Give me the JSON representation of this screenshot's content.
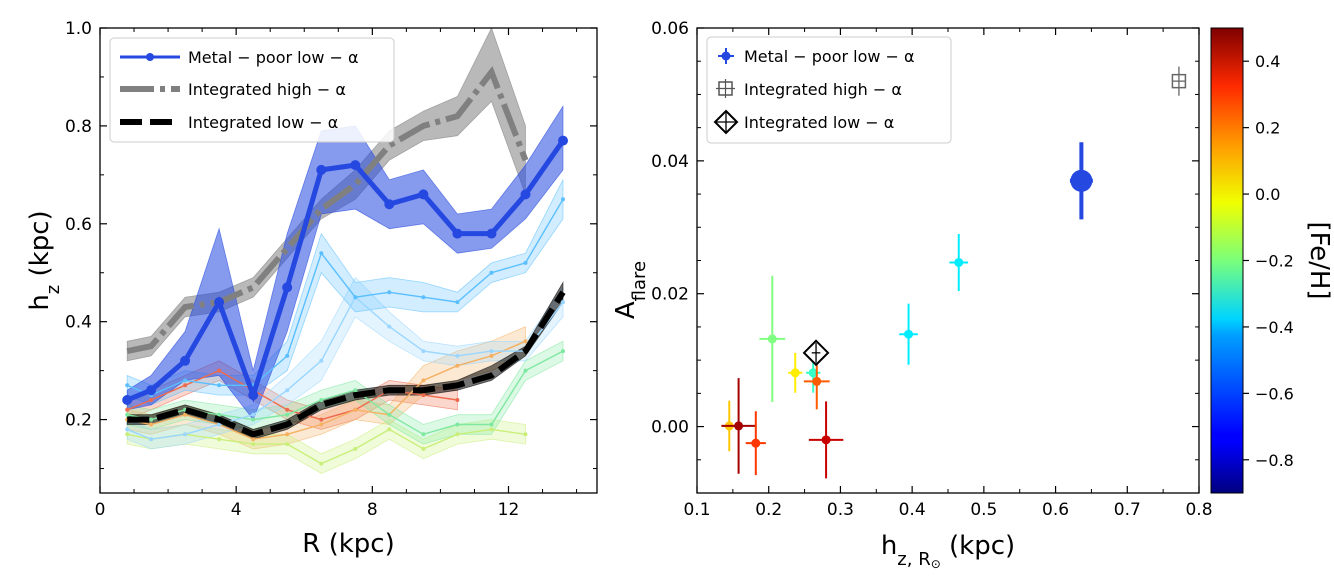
{
  "chart_data": [
    {
      "type": "line",
      "xlabel": "R (kpc)",
      "ylabel_main": "h",
      "ylabel_sub": "z",
      "ylabel_unit": " (kpc)",
      "xlim": [
        0,
        14.6
      ],
      "ylim": [
        0.05,
        1.0
      ],
      "xticks": [
        0,
        4,
        8,
        12
      ],
      "yticks": [
        0.2,
        0.4,
        0.6,
        0.8,
        1.0
      ],
      "ytick_labels": [
        "0.2",
        "0.4",
        "0.6",
        "0.8",
        "1.0"
      ],
      "legend": {
        "placement": "top-left",
        "entries": [
          "Metal − poor low − α",
          "Integrated high − α",
          "Integrated low − α"
        ]
      },
      "series": [
        {
          "color": "#2548e0",
          "style": "solid-marker",
          "highlight": true,
          "x": [
            0.8,
            1.5,
            2.5,
            3.5,
            4.5,
            5.5,
            6.5,
            7.5,
            8.5,
            9.5,
            10.5,
            11.5,
            12.5,
            13.6
          ],
          "y": [
            0.24,
            0.26,
            0.32,
            0.44,
            0.25,
            0.47,
            0.71,
            0.72,
            0.64,
            0.66,
            0.58,
            0.58,
            0.66,
            0.77
          ],
          "lo": [
            0.22,
            0.23,
            0.28,
            0.29,
            0.2,
            0.38,
            0.62,
            0.63,
            0.59,
            0.6,
            0.54,
            0.55,
            0.61,
            0.71
          ],
          "hi": [
            0.26,
            0.29,
            0.38,
            0.59,
            0.3,
            0.58,
            0.79,
            0.8,
            0.69,
            0.71,
            0.62,
            0.63,
            0.72,
            0.84
          ]
        },
        {
          "color": "#808080",
          "style": "dashdot",
          "x": [
            0.8,
            1.5,
            2.5,
            3.5,
            4.5,
            5.5,
            6.5,
            7.5,
            8.5,
            9.5,
            10.5,
            11.5,
            12.5
          ],
          "y": [
            0.34,
            0.35,
            0.43,
            0.44,
            0.47,
            0.55,
            0.63,
            0.68,
            0.76,
            0.8,
            0.82,
            0.91,
            0.73
          ],
          "lo": [
            0.32,
            0.33,
            0.41,
            0.42,
            0.45,
            0.53,
            0.61,
            0.65,
            0.73,
            0.77,
            0.78,
            0.85,
            0.66
          ],
          "hi": [
            0.36,
            0.37,
            0.45,
            0.46,
            0.49,
            0.57,
            0.65,
            0.71,
            0.79,
            0.83,
            0.86,
            1.0,
            0.8
          ]
        },
        {
          "color": "#000000",
          "style": "dashed",
          "x": [
            0.8,
            1.5,
            2.5,
            3.5,
            4.5,
            5.5,
            6.5,
            7.5,
            8.5,
            9.5,
            10.5,
            11.5,
            12.5,
            13.6
          ],
          "y": [
            0.2,
            0.2,
            0.22,
            0.2,
            0.17,
            0.19,
            0.23,
            0.25,
            0.26,
            0.26,
            0.27,
            0.29,
            0.34,
            0.46
          ],
          "lo": [
            0.19,
            0.19,
            0.21,
            0.19,
            0.16,
            0.18,
            0.22,
            0.24,
            0.25,
            0.25,
            0.26,
            0.28,
            0.33,
            0.44
          ],
          "hi": [
            0.21,
            0.21,
            0.23,
            0.21,
            0.18,
            0.2,
            0.24,
            0.26,
            0.27,
            0.27,
            0.28,
            0.31,
            0.35,
            0.48
          ]
        },
        {
          "color": "#5bbfff",
          "style": "thin",
          "x": [
            0.8,
            1.5,
            2.5,
            3.5,
            4.5,
            5.5,
            6.5,
            7.5,
            8.5,
            9.5,
            10.5,
            11.5,
            12.5,
            13.6
          ],
          "y": [
            0.27,
            0.25,
            0.28,
            0.27,
            0.27,
            0.33,
            0.54,
            0.45,
            0.46,
            0.45,
            0.44,
            0.5,
            0.52,
            0.65
          ],
          "lo": [
            0.25,
            0.23,
            0.26,
            0.25,
            0.25,
            0.3,
            0.5,
            0.42,
            0.43,
            0.42,
            0.42,
            0.48,
            0.5,
            0.61
          ],
          "hi": [
            0.29,
            0.27,
            0.3,
            0.29,
            0.29,
            0.36,
            0.58,
            0.48,
            0.49,
            0.48,
            0.46,
            0.52,
            0.54,
            0.69
          ]
        },
        {
          "color": "#9ad6ff",
          "style": "thin",
          "x": [
            0.8,
            1.5,
            2.5,
            3.5,
            4.5,
            5.5,
            6.5,
            7.5,
            8.5,
            9.5,
            10.5,
            11.5,
            12.5,
            13.6
          ],
          "y": [
            0.18,
            0.16,
            0.17,
            0.19,
            0.21,
            0.26,
            0.32,
            0.45,
            0.39,
            0.34,
            0.33,
            0.34,
            0.34,
            0.44
          ],
          "lo": [
            0.16,
            0.14,
            0.15,
            0.17,
            0.19,
            0.23,
            0.28,
            0.41,
            0.36,
            0.32,
            0.31,
            0.32,
            0.32,
            0.41
          ],
          "hi": [
            0.2,
            0.18,
            0.19,
            0.21,
            0.23,
            0.29,
            0.36,
            0.49,
            0.42,
            0.36,
            0.35,
            0.36,
            0.36,
            0.47
          ]
        },
        {
          "color": "#7fe8a0",
          "style": "thin",
          "x": [
            0.8,
            1.5,
            2.5,
            3.5,
            4.5,
            5.5,
            6.5,
            7.5,
            8.5,
            9.5,
            10.5,
            11.5,
            12.5,
            13.6
          ],
          "y": [
            0.21,
            0.2,
            0.22,
            0.21,
            0.2,
            0.21,
            0.24,
            0.26,
            0.21,
            0.17,
            0.19,
            0.19,
            0.3,
            0.34
          ],
          "lo": [
            0.19,
            0.18,
            0.2,
            0.19,
            0.18,
            0.19,
            0.22,
            0.24,
            0.19,
            0.15,
            0.17,
            0.17,
            0.28,
            0.32
          ],
          "hi": [
            0.23,
            0.22,
            0.24,
            0.23,
            0.22,
            0.23,
            0.26,
            0.28,
            0.23,
            0.19,
            0.21,
            0.21,
            0.32,
            0.36
          ]
        },
        {
          "color": "#c9ef7a",
          "style": "thin",
          "x": [
            0.8,
            1.5,
            2.5,
            3.5,
            4.5,
            5.5,
            6.5,
            7.5,
            8.5,
            9.5,
            10.5,
            11.5,
            12.5
          ],
          "y": [
            0.17,
            0.16,
            0.17,
            0.16,
            0.15,
            0.15,
            0.11,
            0.14,
            0.18,
            0.14,
            0.17,
            0.18,
            0.17
          ],
          "lo": [
            0.15,
            0.14,
            0.15,
            0.14,
            0.13,
            0.13,
            0.09,
            0.12,
            0.16,
            0.12,
            0.15,
            0.16,
            0.15
          ],
          "hi": [
            0.19,
            0.18,
            0.19,
            0.18,
            0.17,
            0.17,
            0.13,
            0.16,
            0.2,
            0.16,
            0.19,
            0.2,
            0.19
          ]
        },
        {
          "color": "#f5b062",
          "style": "thin",
          "x": [
            0.8,
            1.5,
            2.5,
            3.5,
            4.5,
            5.5,
            6.5,
            7.5,
            8.5,
            9.5,
            10.5,
            11.5,
            12.5
          ],
          "y": [
            0.2,
            0.19,
            0.21,
            0.19,
            0.16,
            0.17,
            0.19,
            0.22,
            0.21,
            0.28,
            0.31,
            0.33,
            0.36
          ],
          "lo": [
            0.18,
            0.17,
            0.19,
            0.17,
            0.14,
            0.15,
            0.17,
            0.2,
            0.19,
            0.25,
            0.28,
            0.3,
            0.33
          ],
          "hi": [
            0.22,
            0.21,
            0.23,
            0.21,
            0.18,
            0.19,
            0.21,
            0.24,
            0.23,
            0.31,
            0.34,
            0.36,
            0.39
          ]
        },
        {
          "color": "#ee6a4c",
          "style": "thin",
          "x": [
            0.8,
            1.5,
            2.5,
            3.5,
            4.5,
            5.5,
            6.5,
            7.5,
            8.5,
            9.5,
            10.5
          ],
          "y": [
            0.22,
            0.24,
            0.27,
            0.3,
            0.26,
            0.22,
            0.2,
            0.22,
            0.26,
            0.25,
            0.24
          ],
          "lo": [
            0.2,
            0.22,
            0.25,
            0.28,
            0.24,
            0.2,
            0.18,
            0.2,
            0.24,
            0.23,
            0.22
          ],
          "hi": [
            0.24,
            0.26,
            0.29,
            0.32,
            0.28,
            0.24,
            0.22,
            0.24,
            0.28,
            0.27,
            0.26
          ]
        }
      ]
    },
    {
      "type": "scatter",
      "xlabel_main": "h",
      "xlabel_sub": "z, R",
      "xlabel_sun": "⊙",
      "xlabel_unit": " (kpc)",
      "ylabel_main": "A",
      "ylabel_sub": "flare",
      "xlim": [
        0.1,
        0.8
      ],
      "ylim": [
        -0.01,
        0.06
      ],
      "xticks": [
        0.1,
        0.2,
        0.3,
        0.4,
        0.5,
        0.6,
        0.7,
        0.8
      ],
      "xtick_labels": [
        "0.1",
        "0.2",
        "0.3",
        "0.4",
        "0.5",
        "0.6",
        "0.7",
        "0.8"
      ],
      "yticks": [
        0.0,
        0.02,
        0.04,
        0.06
      ],
      "ytick_labels": [
        "0.00",
        "0.02",
        "0.04",
        "0.06"
      ],
      "legend": {
        "placement": "top-left",
        "entries": [
          "Metal − poor low − α",
          "Integrated high − α",
          "Integrated low − α"
        ]
      },
      "colorbar": {
        "label": "[Fe/H]",
        "range": [
          -0.9,
          0.5
        ],
        "ticks": [
          0.4,
          0.2,
          0.0,
          -0.2,
          -0.4,
          -0.6,
          -0.8
        ],
        "tick_labels": [
          "0.4",
          "0.2",
          "0.0",
          "−0.2",
          "−0.4",
          "−0.6",
          "−0.8"
        ]
      },
      "points": [
        {
          "x": 0.636,
          "y": 0.037,
          "xerr": 0.016,
          "yerr": 0.0058,
          "feh": -0.6,
          "big": true
        },
        {
          "x": 0.465,
          "y": 0.0247,
          "xerr": 0.013,
          "yerr": 0.0043,
          "feh": -0.4
        },
        {
          "x": 0.395,
          "y": 0.0139,
          "xerr": 0.013,
          "yerr": 0.0046,
          "feh": -0.4
        },
        {
          "x": 0.205,
          "y": 0.0132,
          "xerr": 0.018,
          "yerr": 0.0095,
          "feh": -0.2
        },
        {
          "x": 0.262,
          "y": 0.0081,
          "xerr": 0.01,
          "yerr": 0.003,
          "feh": -0.3
        },
        {
          "x": 0.237,
          "y": 0.0081,
          "xerr": 0.01,
          "yerr": 0.003,
          "feh": 0.0
        },
        {
          "x": 0.267,
          "y": 0.0068,
          "xerr": 0.018,
          "yerr": 0.0042,
          "feh": 0.2
        },
        {
          "x": 0.145,
          "y": 0.0001,
          "xerr": 0.01,
          "yerr": 0.0038,
          "feh": 0.05
        },
        {
          "x": 0.158,
          "y": 0.0001,
          "xerr": 0.024,
          "yerr": 0.0072,
          "feh": 0.45
        },
        {
          "x": 0.182,
          "y": -0.0025,
          "xerr": 0.014,
          "yerr": 0.0048,
          "feh": 0.25
        },
        {
          "x": 0.28,
          "y": -0.002,
          "xerr": 0.024,
          "yerr": 0.0058,
          "feh": 0.4
        }
      ],
      "high_alpha_marker": {
        "x": 0.772,
        "y": 0.052,
        "xerr": 0.009,
        "yerr": 0.0022
      },
      "low_alpha_marker": {
        "x": 0.266,
        "y": 0.0111,
        "xerr": 0.006,
        "yerr": 0.0015
      }
    }
  ]
}
